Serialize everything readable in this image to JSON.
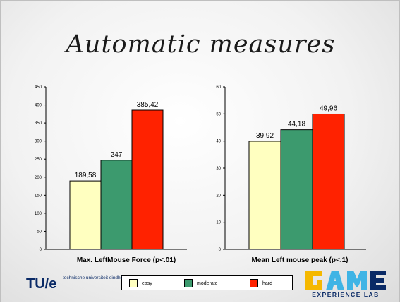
{
  "slide": {
    "title": "Automatic measures"
  },
  "colors": {
    "easy": "#ffffc0",
    "moderate": "#3c9a6e",
    "hard": "#ff2200"
  },
  "legend": [
    {
      "label": "easy",
      "color": "#ffffc0"
    },
    {
      "label": "moderate",
      "color": "#3c9a6e"
    },
    {
      "label": "hard",
      "color": "#ff2200"
    }
  ],
  "footer": {
    "tue_logo": "TU/e",
    "tue_text": "technische universiteit eindhoven",
    "game_logo_letters": "GAME",
    "game_logo_sub": "EXPERIENCE LAB"
  },
  "chart_data": [
    {
      "type": "bar",
      "title": "Max. LeftMouse Force (p<.01)",
      "categories": [
        "easy",
        "moderate",
        "hard"
      ],
      "values": [
        189.58,
        247,
        385.42
      ],
      "value_labels": [
        "189,58",
        "247",
        "385,42"
      ],
      "ylim": [
        0,
        450
      ],
      "yticks": [
        0,
        50,
        100,
        150,
        200,
        250,
        300,
        350,
        400,
        450
      ],
      "xlabel": "",
      "ylabel": "",
      "grid": false,
      "legend": "bottom"
    },
    {
      "type": "bar",
      "title": "Mean Left mouse peak (p<.1)",
      "categories": [
        "easy",
        "moderate",
        "hard"
      ],
      "values": [
        39.92,
        44.18,
        49.96
      ],
      "value_labels": [
        "39,92",
        "44,18",
        "49,96"
      ],
      "ylim": [
        0,
        60
      ],
      "yticks": [
        0,
        10,
        20,
        30,
        40,
        50,
        60
      ],
      "xlabel": "",
      "ylabel": "",
      "grid": false,
      "legend": "bottom"
    }
  ]
}
